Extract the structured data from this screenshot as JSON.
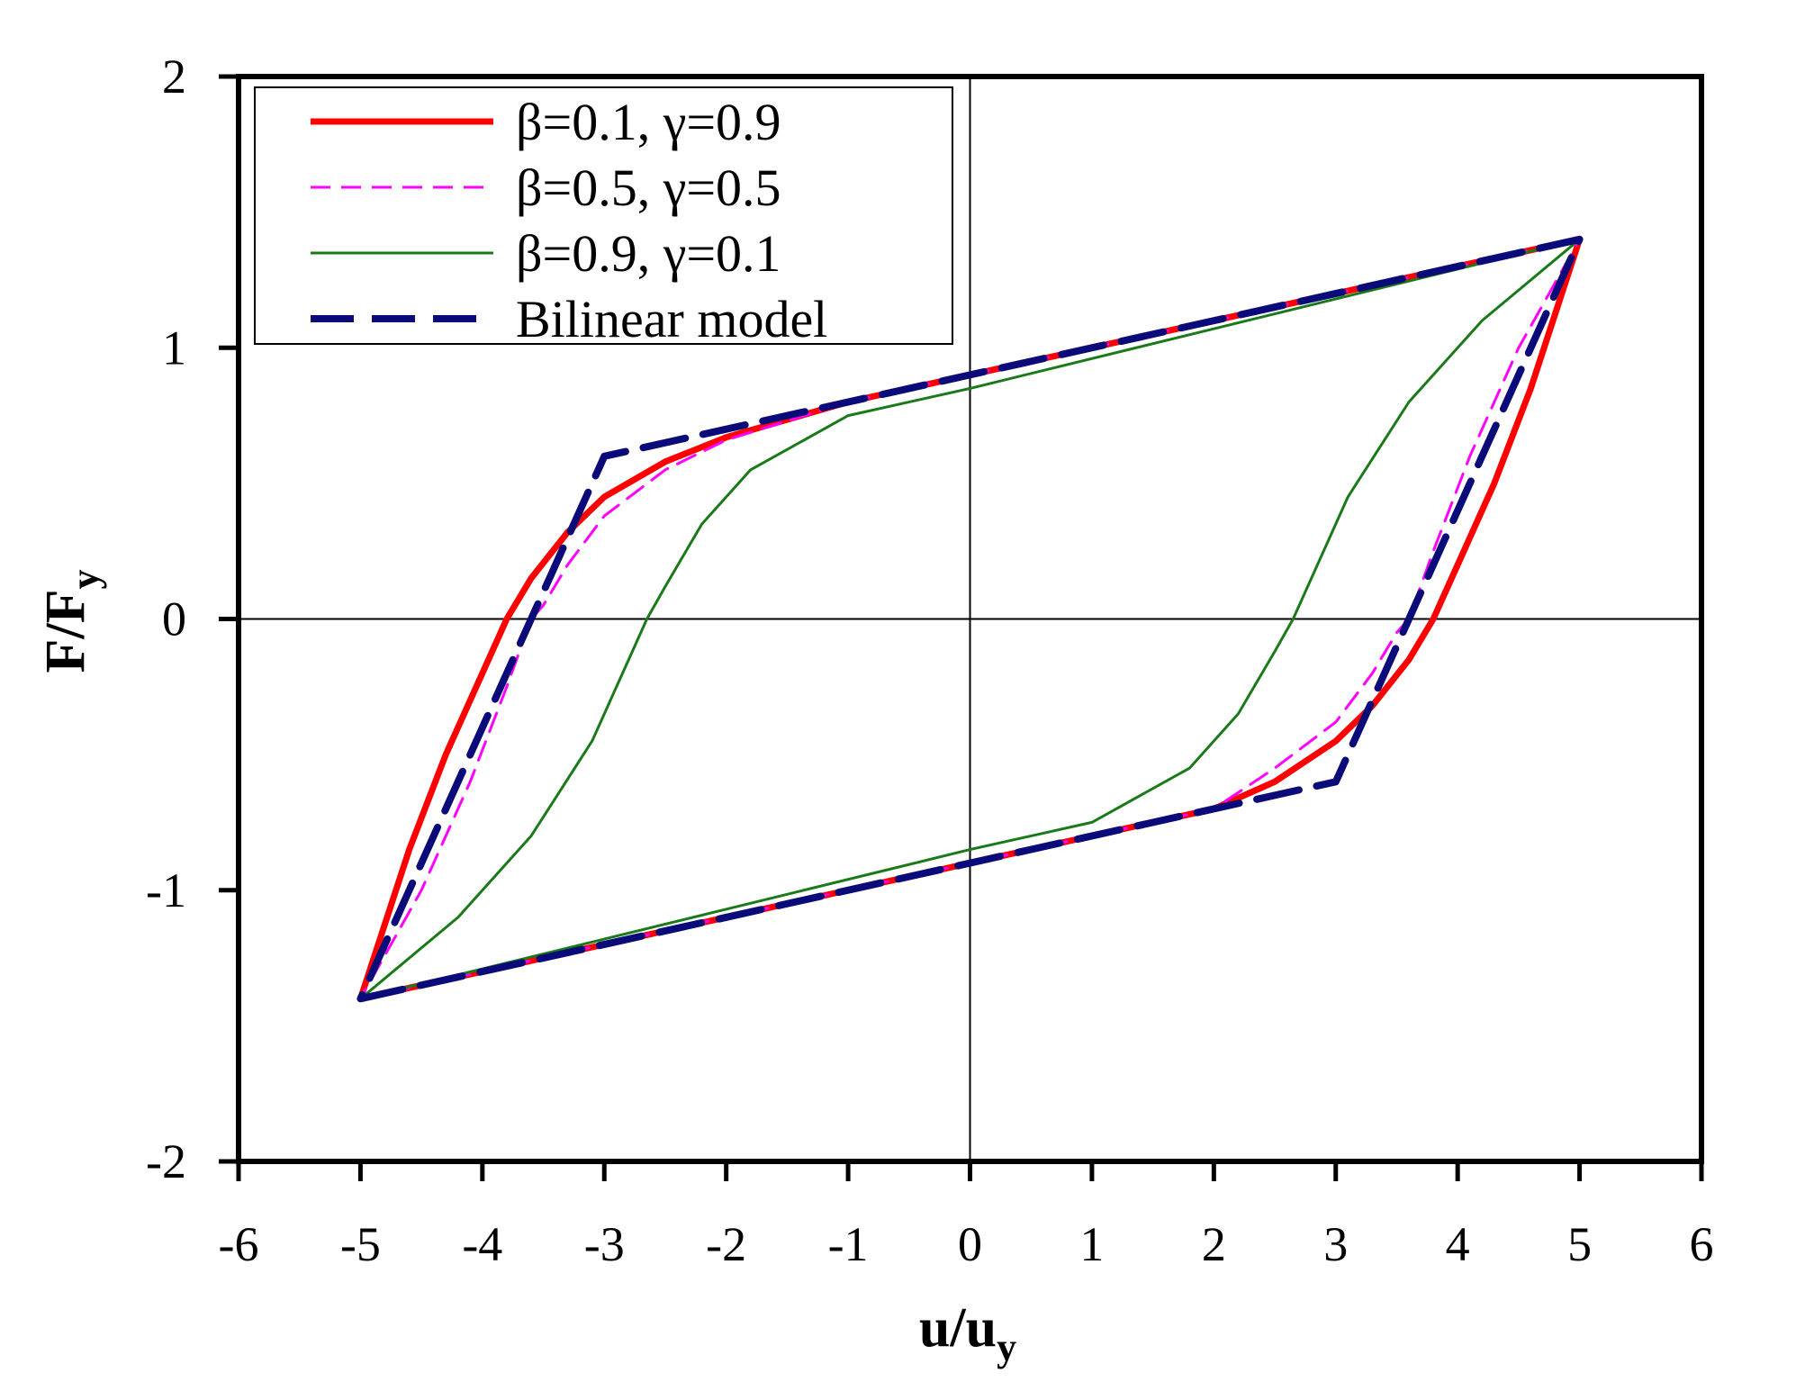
{
  "chart_data": {
    "type": "line",
    "xlabel": {
      "main": "u/u",
      "sub": "y"
    },
    "ylabel": {
      "main": "F/F",
      "sub": "y"
    },
    "xlim": [
      -6,
      6
    ],
    "ylim": [
      -2,
      2
    ],
    "x_ticks": [
      "-6",
      "-5",
      "-4",
      "-3",
      "-2",
      "-1",
      "0",
      "1",
      "2",
      "3",
      "4",
      "5",
      "6"
    ],
    "y_ticks": [
      "2",
      "1",
      "0",
      "-1",
      "-2"
    ],
    "grid": false,
    "zero_lines": true,
    "legend_position": "top-left",
    "series": [
      {
        "name": "β=0.1, γ=0.9",
        "color": "#ff0000",
        "style": "solid-thick",
        "points": [
          [
            -5,
            -1.4
          ],
          [
            0,
            -0.9
          ],
          [
            2,
            -0.7
          ],
          [
            2.5,
            -0.6
          ],
          [
            3,
            -0.45
          ],
          [
            3.3,
            -0.32
          ],
          [
            3.6,
            -0.15
          ],
          [
            3.8,
            0.0
          ],
          [
            4.0,
            0.2
          ],
          [
            4.3,
            0.5
          ],
          [
            4.6,
            0.85
          ],
          [
            5,
            1.4
          ],
          [
            0,
            0.9
          ],
          [
            -1,
            0.8
          ],
          [
            -2,
            0.67
          ],
          [
            -2.5,
            0.58
          ],
          [
            -3,
            0.45
          ],
          [
            -3.3,
            0.32
          ],
          [
            -3.6,
            0.15
          ],
          [
            -3.8,
            0.0
          ],
          [
            -4.0,
            -0.2
          ],
          [
            -4.3,
            -0.5
          ],
          [
            -4.6,
            -0.85
          ],
          [
            -5,
            -1.4
          ]
        ]
      },
      {
        "name": "β=0.5, γ=0.5",
        "color": "#ff00ff",
        "style": "dashed-thin",
        "points": [
          [
            -5,
            -1.4
          ],
          [
            0,
            -0.9
          ],
          [
            2,
            -0.7
          ],
          [
            2.5,
            -0.55
          ],
          [
            3,
            -0.38
          ],
          [
            3.3,
            -0.2
          ],
          [
            3.5,
            -0.05
          ],
          [
            3.6,
            0.0
          ],
          [
            3.8,
            0.25
          ],
          [
            4.1,
            0.6
          ],
          [
            4.5,
            1.0
          ],
          [
            5,
            1.4
          ],
          [
            0,
            0.9
          ],
          [
            -1,
            0.8
          ],
          [
            -2,
            0.66
          ],
          [
            -2.5,
            0.55
          ],
          [
            -3,
            0.38
          ],
          [
            -3.3,
            0.2
          ],
          [
            -3.5,
            0.05
          ],
          [
            -3.6,
            0.0
          ],
          [
            -3.8,
            -0.25
          ],
          [
            -4.1,
            -0.6
          ],
          [
            -4.5,
            -1.0
          ],
          [
            -5,
            -1.4
          ]
        ]
      },
      {
        "name": "β=0.9, γ=0.1",
        "color": "#1a7a1a",
        "style": "solid-thin",
        "points": [
          [
            -5,
            -1.4
          ],
          [
            0,
            -0.85
          ],
          [
            1,
            -0.75
          ],
          [
            1.8,
            -0.55
          ],
          [
            2.2,
            -0.35
          ],
          [
            2.5,
            -0.12
          ],
          [
            2.65,
            0.0
          ],
          [
            2.8,
            0.15
          ],
          [
            3.1,
            0.45
          ],
          [
            3.6,
            0.8
          ],
          [
            4.2,
            1.1
          ],
          [
            5,
            1.4
          ],
          [
            0,
            0.85
          ],
          [
            -1,
            0.75
          ],
          [
            -1.8,
            0.55
          ],
          [
            -2.2,
            0.35
          ],
          [
            -2.5,
            0.12
          ],
          [
            -2.65,
            0.0
          ],
          [
            -2.8,
            -0.15
          ],
          [
            -3.1,
            -0.45
          ],
          [
            -3.6,
            -0.8
          ],
          [
            -4.2,
            -1.1
          ],
          [
            -5,
            -1.4
          ]
        ]
      },
      {
        "name": "Bilinear model",
        "color": "#0a0a78",
        "style": "dashed-thick",
        "points": [
          [
            -5,
            -1.4
          ],
          [
            0,
            -0.9
          ],
          [
            3,
            -0.6
          ],
          [
            5,
            1.4
          ],
          [
            0,
            0.9
          ],
          [
            -3,
            0.6
          ],
          [
            -5,
            -1.4
          ]
        ]
      }
    ]
  }
}
